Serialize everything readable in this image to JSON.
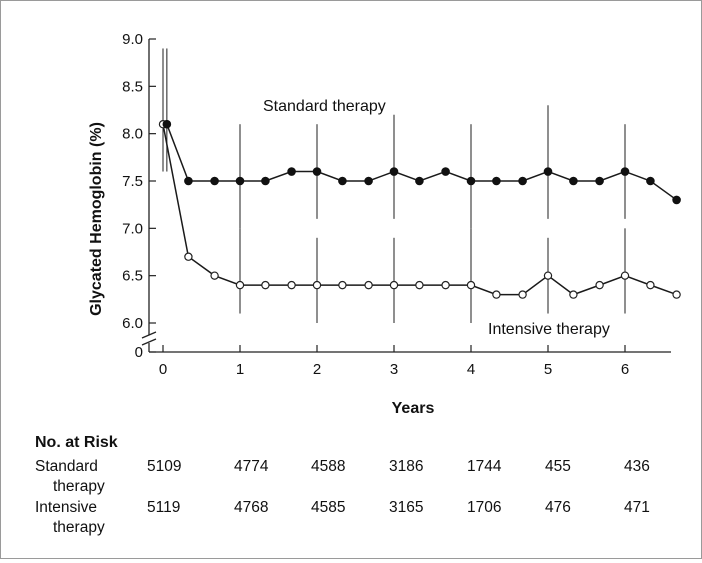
{
  "chart_data": {
    "type": "line",
    "xlabel": "Years",
    "ylabel": "Glycated Hemoglobin (%)",
    "xlim": [
      0,
      6.8
    ],
    "ylim": [
      6.0,
      9.0
    ],
    "y_axis_break": true,
    "y_ticks": [
      "9.0",
      "8.5",
      "8.0",
      "7.5",
      "7.0",
      "6.5",
      "6.0",
      "0"
    ],
    "x_ticks": [
      "0",
      "1",
      "2",
      "3",
      "4",
      "5",
      "6"
    ],
    "series": [
      {
        "name": "Standard therapy",
        "marker": "filled-circle",
        "points": [
          {
            "x": 0.05,
            "y": 8.1
          },
          {
            "x": 0.33,
            "y": 7.5
          },
          {
            "x": 0.67,
            "y": 7.5
          },
          {
            "x": 1.0,
            "y": 7.5
          },
          {
            "x": 1.33,
            "y": 7.5
          },
          {
            "x": 1.67,
            "y": 7.6
          },
          {
            "x": 2.0,
            "y": 7.6
          },
          {
            "x": 2.33,
            "y": 7.5
          },
          {
            "x": 2.67,
            "y": 7.5
          },
          {
            "x": 3.0,
            "y": 7.6
          },
          {
            "x": 3.33,
            "y": 7.5
          },
          {
            "x": 3.67,
            "y": 7.6
          },
          {
            "x": 4.0,
            "y": 7.5
          },
          {
            "x": 4.33,
            "y": 7.5
          },
          {
            "x": 4.67,
            "y": 7.5
          },
          {
            "x": 5.0,
            "y": 7.6
          },
          {
            "x": 5.33,
            "y": 7.5
          },
          {
            "x": 5.67,
            "y": 7.5
          },
          {
            "x": 6.0,
            "y": 7.6
          },
          {
            "x": 6.33,
            "y": 7.5
          },
          {
            "x": 6.67,
            "y": 7.3
          }
        ],
        "error_bars": [
          {
            "x": 0.05,
            "low": 7.6,
            "high": 8.9
          },
          {
            "x": 1.0,
            "low": 7.0,
            "high": 8.1
          },
          {
            "x": 2.0,
            "low": 7.1,
            "high": 8.1
          },
          {
            "x": 3.0,
            "low": 7.1,
            "high": 8.2
          },
          {
            "x": 4.0,
            "low": 7.0,
            "high": 8.1
          },
          {
            "x": 5.0,
            "low": 7.1,
            "high": 8.3
          },
          {
            "x": 6.0,
            "low": 7.1,
            "high": 8.1
          }
        ]
      },
      {
        "name": "Intensive therapy",
        "marker": "open-circle",
        "points": [
          {
            "x": 0.0,
            "y": 8.1
          },
          {
            "x": 0.33,
            "y": 6.7
          },
          {
            "x": 0.67,
            "y": 6.5
          },
          {
            "x": 1.0,
            "y": 6.4
          },
          {
            "x": 1.33,
            "y": 6.4
          },
          {
            "x": 1.67,
            "y": 6.4
          },
          {
            "x": 2.0,
            "y": 6.4
          },
          {
            "x": 2.33,
            "y": 6.4
          },
          {
            "x": 2.67,
            "y": 6.4
          },
          {
            "x": 3.0,
            "y": 6.4
          },
          {
            "x": 3.33,
            "y": 6.4
          },
          {
            "x": 3.67,
            "y": 6.4
          },
          {
            "x": 4.0,
            "y": 6.4
          },
          {
            "x": 4.33,
            "y": 6.3
          },
          {
            "x": 4.67,
            "y": 6.3
          },
          {
            "x": 5.0,
            "y": 6.5
          },
          {
            "x": 5.33,
            "y": 6.3
          },
          {
            "x": 5.67,
            "y": 6.4
          },
          {
            "x": 6.0,
            "y": 6.5
          },
          {
            "x": 6.33,
            "y": 6.4
          },
          {
            "x": 6.67,
            "y": 6.3
          }
        ],
        "error_bars": [
          {
            "x": 0.0,
            "low": 7.6,
            "high": 8.9
          },
          {
            "x": 1.0,
            "low": 6.1,
            "high": 7.0
          },
          {
            "x": 2.0,
            "low": 6.0,
            "high": 6.9
          },
          {
            "x": 3.0,
            "low": 6.0,
            "high": 6.9
          },
          {
            "x": 4.0,
            "low": 6.0,
            "high": 7.0
          },
          {
            "x": 5.0,
            "low": 6.1,
            "high": 6.9
          },
          {
            "x": 6.0,
            "low": 6.1,
            "high": 7.0
          }
        ]
      }
    ],
    "at_risk": {
      "title": "No. at Risk",
      "rows": [
        {
          "label_lines": [
            "Standard",
            "therapy"
          ],
          "values": [
            "5109",
            "4774",
            "4588",
            "3186",
            "1744",
            "455",
            "436"
          ]
        },
        {
          "label_lines": [
            "Intensive",
            "therapy"
          ],
          "values": [
            "5119",
            "4768",
            "4585",
            "3165",
            "1706",
            "476",
            "471"
          ]
        }
      ]
    }
  }
}
